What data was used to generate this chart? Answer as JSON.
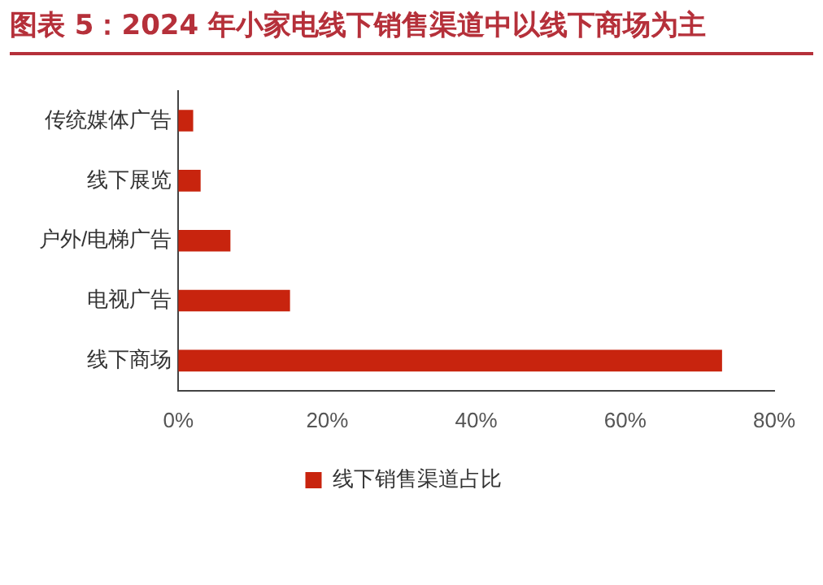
{
  "chart_data": {
    "type": "bar",
    "orientation": "horizontal",
    "title": "图表 5：2024 年小家电线下销售渠道中以线下商场为主",
    "categories": [
      "传统媒体广告",
      "线下展览",
      "户外/电梯广告",
      "电视广告",
      "线下商场"
    ],
    "series": [
      {
        "name": "线下销售渠道占比",
        "color": "#c8240e",
        "values": [
          2,
          3,
          7,
          15,
          73
        ]
      }
    ],
    "xlim": [
      0,
      80
    ],
    "xticks": [
      {
        "value": 0,
        "label": "0%"
      },
      {
        "value": 20,
        "label": "20%"
      },
      {
        "value": 40,
        "label": "40%"
      },
      {
        "value": 60,
        "label": "60%"
      },
      {
        "value": 80,
        "label": "80%"
      }
    ],
    "grid": false,
    "legend": "bottom"
  }
}
